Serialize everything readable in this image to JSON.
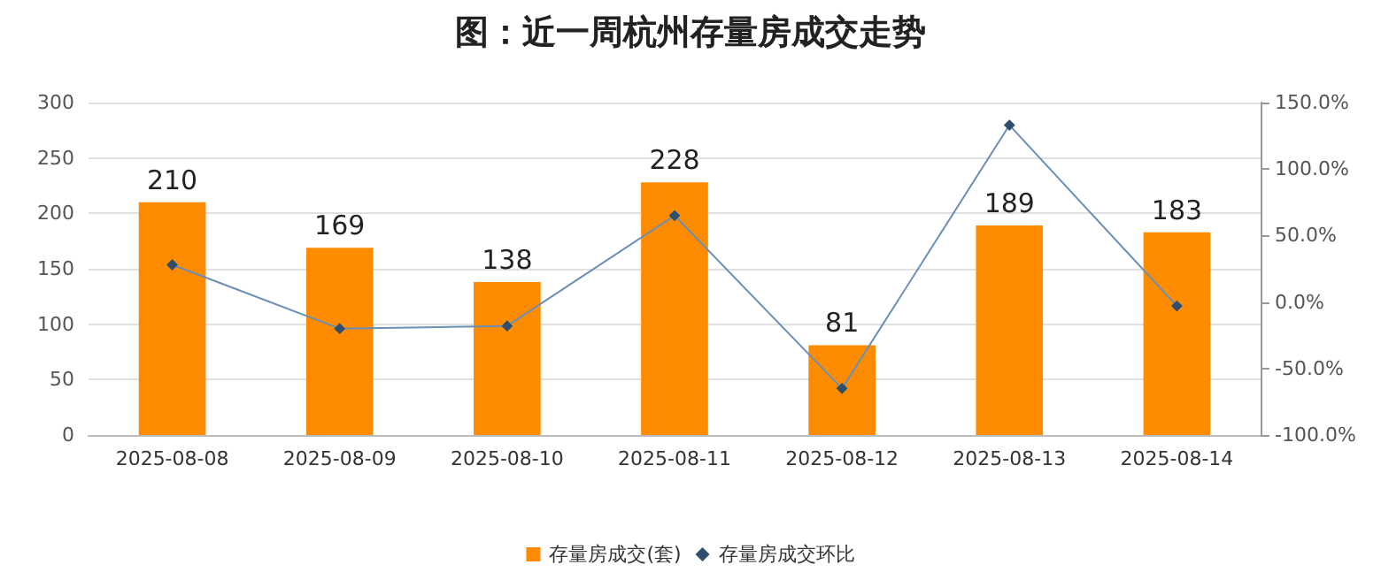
{
  "chart_data": {
    "type": "bar",
    "title": "图：近一周杭州存量房成交走势",
    "categories": [
      "2025-08-08",
      "2025-08-09",
      "2025-08-10",
      "2025-08-11",
      "2025-08-12",
      "2025-08-13",
      "2025-08-14"
    ],
    "series": [
      {
        "name": "存量房成交(套)",
        "color": "#ff8c00",
        "values": [
          210,
          169,
          138,
          228,
          81,
          189,
          183
        ],
        "data_labels": true
      },
      {
        "name": "存量房成交环比",
        "type": "line",
        "axis": "y2",
        "color": "#6a8fb5",
        "marker": "diamond",
        "values": [
          28,
          -20,
          -18,
          65,
          -65,
          133,
          -3
        ]
      }
    ],
    "ylim": [
      0,
      300
    ],
    "yticks": [
      0,
      50,
      100,
      150,
      200,
      250,
      300
    ],
    "y2lim": [
      -100,
      150
    ],
    "y2ticks": [
      {
        "value": -100,
        "label": "-100.0%"
      },
      {
        "value": -50,
        "label": "-50.0%"
      },
      {
        "value": 0,
        "label": "0.0%"
      },
      {
        "value": 50,
        "label": "50.0%"
      },
      {
        "value": 100,
        "label": "100.0%"
      },
      {
        "value": 150,
        "label": "150.0%"
      }
    ],
    "grid": "y",
    "legend": "bottom"
  }
}
